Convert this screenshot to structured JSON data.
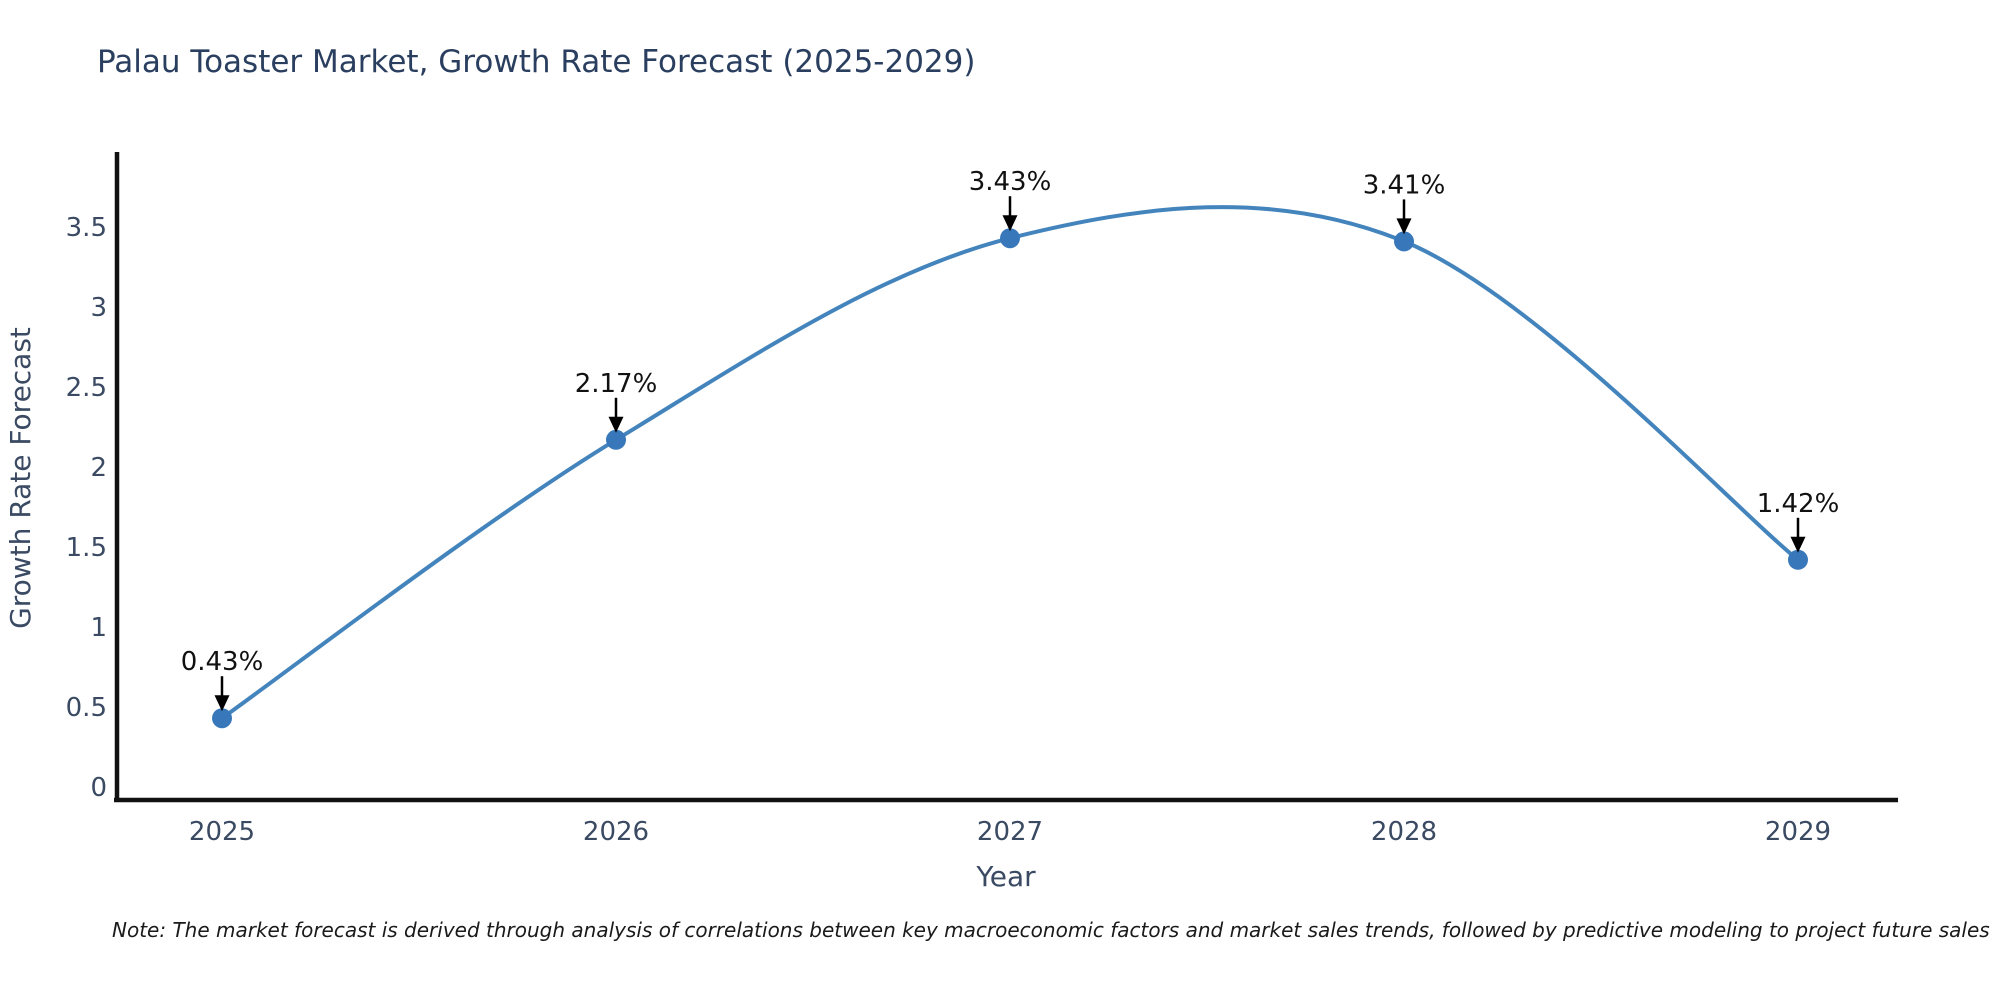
{
  "title": {
    "text": "Palau Toaster Market, Growth Rate Forecast (2025-2029)",
    "color": "#2a3f5f"
  },
  "note": {
    "text": "Note: The market forecast is derived through analysis of correlations between key macroeconomic factors and market sales trends, followed by predictive modeling to project future sales"
  },
  "chart_data": {
    "type": "line",
    "title": "Palau Toaster Market, Growth Rate Forecast (2025-2029)",
    "xlabel": "Year",
    "ylabel": "Growth Rate Forecast",
    "x": [
      2025,
      2026,
      2027,
      2028,
      2029
    ],
    "values": [
      0.43,
      2.17,
      3.43,
      3.41,
      1.42
    ],
    "point_labels": [
      "0.43%",
      "2.17%",
      "3.43%",
      "3.41%",
      "1.42%"
    ],
    "xticks": [
      "2025",
      "2026",
      "2027",
      "2028",
      "2029"
    ],
    "yticks": [
      "0",
      "0.5",
      "1",
      "1.5",
      "2",
      "2.5",
      "3",
      "3.5"
    ],
    "ytick_values": [
      0,
      0.5,
      1,
      1.5,
      2,
      2.5,
      3,
      3.5
    ],
    "ylim": [
      0,
      3.95
    ],
    "grid": false,
    "legend": "none",
    "line_shape": "spline",
    "line_color": "#4484bd",
    "marker_color": "#3878ba",
    "marker_radius": 10,
    "annotation_arrow_color": "#000000",
    "axis_color": "#111111",
    "tick_color": "#3b4a63"
  }
}
